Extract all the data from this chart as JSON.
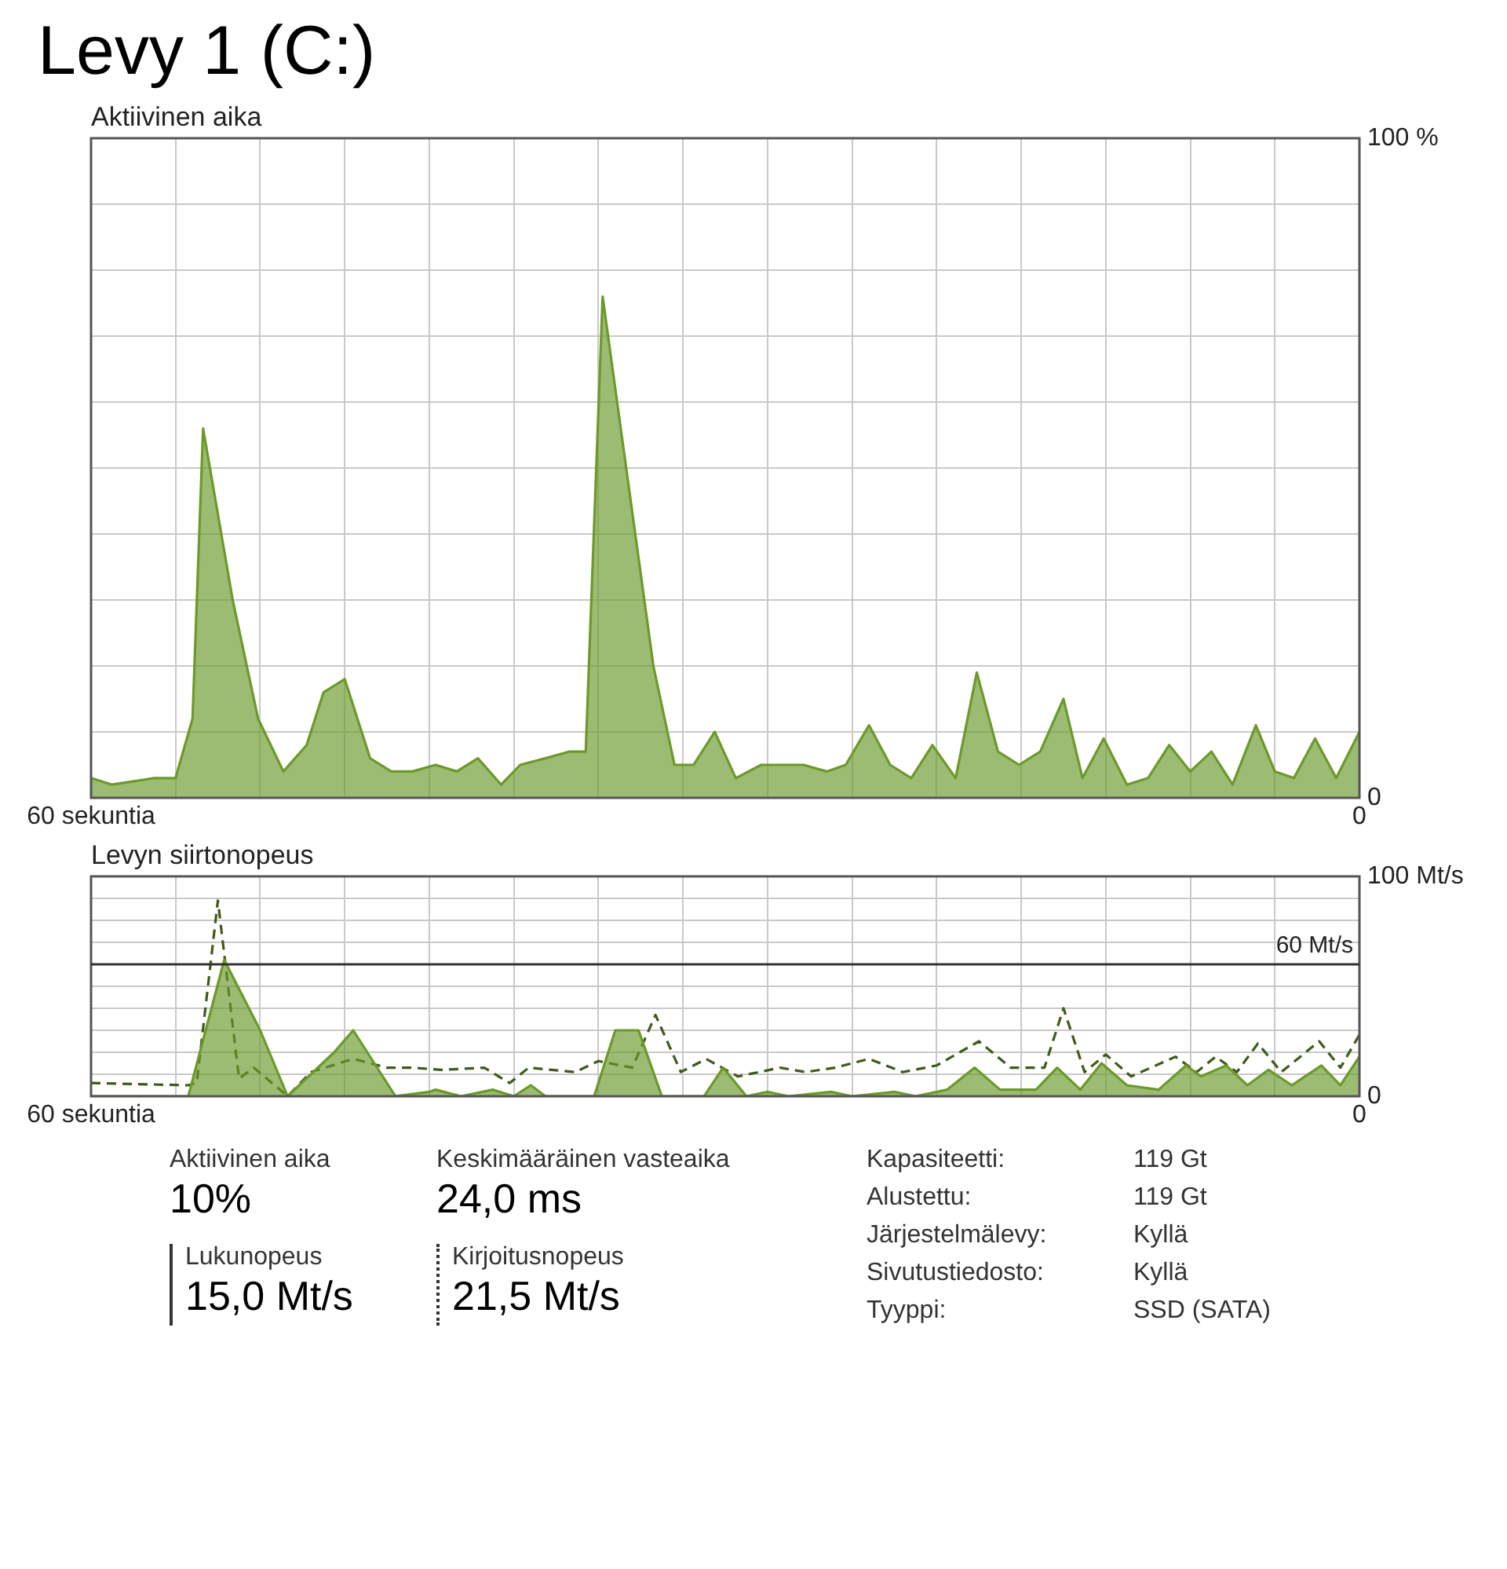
{
  "chart_data": [
    {
      "type": "area",
      "title": "Levy 1 (C:)",
      "ylabel": "Aktiivinen aika",
      "grid": true,
      "marker": "none",
      "xlim": [
        60,
        0
      ],
      "ylim": [
        0,
        100
      ],
      "xticks": [
        {
          "value": 60,
          "label": "60 sekuntia"
        },
        {
          "value": 56,
          "label": null
        },
        {
          "value": 52,
          "label": null
        },
        {
          "value": 48,
          "label": null
        },
        {
          "value": 44,
          "label": null
        },
        {
          "value": 40,
          "label": null
        },
        {
          "value": 36,
          "label": null
        },
        {
          "value": 32,
          "label": null
        },
        {
          "value": 28,
          "label": null
        },
        {
          "value": 24,
          "label": null
        },
        {
          "value": 20,
          "label": null
        },
        {
          "value": 16,
          "label": null
        },
        {
          "value": 12,
          "label": null
        },
        {
          "value": 8,
          "label": null
        },
        {
          "value": 4,
          "label": null
        },
        {
          "value": 0,
          "label": "0"
        }
      ],
      "yticks": [
        {
          "value": 0,
          "label": "0"
        },
        {
          "value": 10,
          "label": null
        },
        {
          "value": 20,
          "label": null
        },
        {
          "value": 30,
          "label": null
        },
        {
          "value": 40,
          "label": null
        },
        {
          "value": 50,
          "label": null
        },
        {
          "value": 60,
          "label": null
        },
        {
          "value": 70,
          "label": null
        },
        {
          "value": 80,
          "label": null
        },
        {
          "value": 90,
          "label": null
        },
        {
          "value": 100,
          "label": "100 %"
        }
      ],
      "series": [
        {
          "color": "#6b9a2a",
          "x": [
            60,
            59,
            57,
            56,
            55.2,
            54.7,
            53.3,
            52.1,
            50.9,
            49.8,
            49,
            48,
            46.8,
            45.8,
            44.8,
            43.7,
            42.7,
            41.7,
            40.6,
            39.7,
            38.5,
            37.4,
            36.6,
            35.8,
            33.4,
            32.4,
            31.5,
            30.5,
            29.5,
            28.3,
            26.3,
            25.2,
            24.3,
            23.2,
            22.2,
            21.2,
            20.2,
            19.1,
            18.1,
            17.1,
            16.1,
            15.1,
            14,
            13.1,
            12.1,
            11,
            10,
            9,
            8,
            7,
            6,
            4.9,
            4,
            3.1,
            2.1,
            1.1,
            0
          ],
          "values": [
            3,
            2,
            3,
            3,
            12,
            56,
            30,
            12,
            4,
            8,
            16,
            18,
            6,
            4,
            4,
            5,
            4,
            6,
            2,
            5,
            6,
            7,
            7,
            76,
            20,
            5,
            5,
            10,
            3,
            5,
            5,
            4,
            5,
            11,
            5,
            3,
            8,
            3,
            19,
            7,
            5,
            7,
            15,
            3,
            9,
            2,
            3,
            8,
            4,
            7,
            2,
            11,
            4,
            3,
            9,
            3,
            10
          ]
        }
      ]
    },
    {
      "type": "area",
      "ylabel": "Levyn siirtonopeus",
      "grid": true,
      "marker": "none",
      "xlim": [
        60,
        0
      ],
      "ylim": [
        0,
        100
      ],
      "xticks": [
        {
          "value": 60,
          "label": "60 sekuntia"
        },
        {
          "value": 56,
          "label": null
        },
        {
          "value": 52,
          "label": null
        },
        {
          "value": 48,
          "label": null
        },
        {
          "value": 44,
          "label": null
        },
        {
          "value": 40,
          "label": null
        },
        {
          "value": 36,
          "label": null
        },
        {
          "value": 32,
          "label": null
        },
        {
          "value": 28,
          "label": null
        },
        {
          "value": 24,
          "label": null
        },
        {
          "value": 20,
          "label": null
        },
        {
          "value": 16,
          "label": null
        },
        {
          "value": 12,
          "label": null
        },
        {
          "value": 8,
          "label": null
        },
        {
          "value": 4,
          "label": null
        },
        {
          "value": 0,
          "label": "0"
        }
      ],
      "yticks": [
        {
          "value": 0,
          "label": "0"
        },
        {
          "value": 10,
          "label": null
        },
        {
          "value": 20,
          "label": null
        },
        {
          "value": 30,
          "label": null
        },
        {
          "value": 40,
          "label": null
        },
        {
          "value": 50,
          "label": null
        },
        {
          "value": 60,
          "label": null
        },
        {
          "value": 70,
          "label": null
        },
        {
          "value": 80,
          "label": null
        },
        {
          "value": 90,
          "label": null
        },
        {
          "value": 100,
          "label": "100 Mt/s"
        }
      ],
      "ref_lines": [
        {
          "axis": "y",
          "value": 60,
          "label": "60 Mt/s"
        }
      ],
      "series": [
        {
          "type": "area",
          "color": "#6b9a2a",
          "x": [
            60,
            56,
            55.4,
            53.7,
            52,
            50.7,
            48.5,
            47.6,
            45.6,
            44,
            43.7,
            42.5,
            41,
            40,
            39.2,
            38.5,
            36.2,
            35.2,
            34.1,
            33,
            31,
            30.1,
            29,
            28,
            27,
            25,
            24,
            22,
            21,
            19.5,
            18.2,
            17,
            15.3,
            14.3,
            13.2,
            12.2,
            11,
            9.5,
            8.2,
            7.5,
            6.3,
            5.3,
            4.3,
            3.2,
            1.8,
            0.9,
            0
          ],
          "values": [
            0,
            0,
            0,
            62,
            30,
            0,
            20,
            30,
            0,
            2,
            3,
            0,
            3,
            0,
            5,
            0,
            0,
            30,
            30,
            0,
            0,
            13,
            0,
            2,
            0,
            2,
            0,
            2,
            0,
            3,
            13,
            3,
            3,
            13,
            3,
            15,
            5,
            3,
            14,
            9,
            14,
            5,
            12,
            5,
            14,
            5,
            18
          ]
        },
        {
          "type": "line",
          "line_style": "dashed",
          "color": "#3f5a1a",
          "x": [
            60,
            55.4,
            55,
            54,
            53,
            52.3,
            50.7,
            49.6,
            47.6,
            46,
            44.8,
            43.4,
            41.4,
            40.2,
            39.3,
            37.1,
            36,
            34.4,
            33.3,
            32.1,
            30.9,
            29.4,
            27.4,
            26.2,
            24.8,
            23.2,
            21.6,
            20,
            18,
            16.5,
            14.9,
            14,
            13,
            12,
            10.8,
            8.7,
            7.7,
            6.8,
            5.8,
            4.8,
            3.7,
            1.9,
            0.9,
            0
          ],
          "values": [
            6,
            5,
            6,
            89,
            8,
            13,
            0,
            11,
            17,
            13,
            13,
            12,
            13,
            6,
            13,
            11,
            16,
            13,
            37,
            11,
            17,
            9,
            13,
            11,
            13,
            17,
            11,
            14,
            25,
            13,
            13,
            40,
            11,
            19,
            9,
            18,
            11,
            18,
            11,
            24,
            11,
            25,
            13,
            28
          ]
        }
      ]
    },
    {
      "type": "other",
      "annotations": [
        "Aktiivinen aika",
        "10%",
        "Keskimääräinen vasteaika",
        "24,0 ms",
        "Lukunopeus",
        "15,0 Mt/s",
        "Kirjoitusnopeus",
        "21,5 Mt/s",
        "Kapasiteetti:",
        "119 Gt",
        "Alustettu:",
        "119 Gt",
        "Järjestelmälevy:",
        "Kyllä",
        "Sivutustiedosto:",
        "Kyllä",
        "Tyyppi:",
        "SSD (SATA)"
      ]
    }
  ]
}
